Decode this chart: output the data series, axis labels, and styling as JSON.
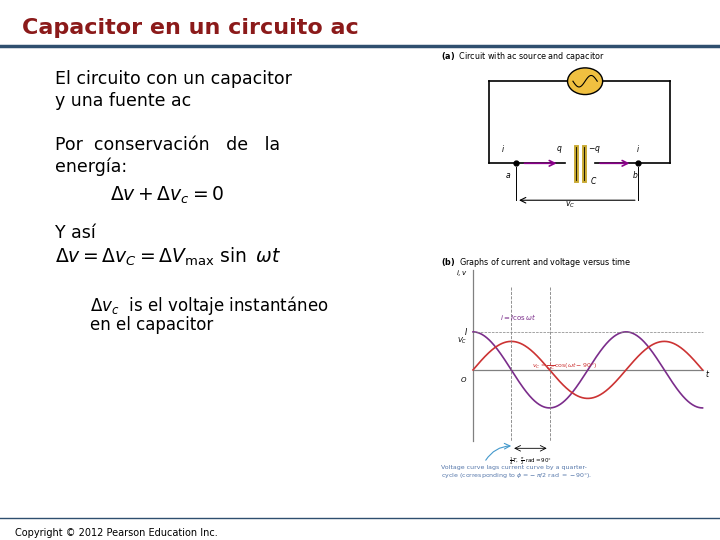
{
  "title": "Capacitor en un circuito ac",
  "title_color": "#8B1A1A",
  "title_fontsize": 16,
  "bg_color": "#FFFFFF",
  "rule_color": "#2F4F6F",
  "copyright_text": "Copyright © 2012 Pearson Education Inc.",
  "copyright_fontsize": 7,
  "circuit_label": "(a)  Circuit with ac source and capacitor",
  "graph_label": "(b)  Graphs of current and voltage versus time",
  "footer_line1": "Voltage curve lags current curve by a quarter-",
  "footer_line2": "cycle (corresponding to ϕ = −π/2 rad = −90°)."
}
